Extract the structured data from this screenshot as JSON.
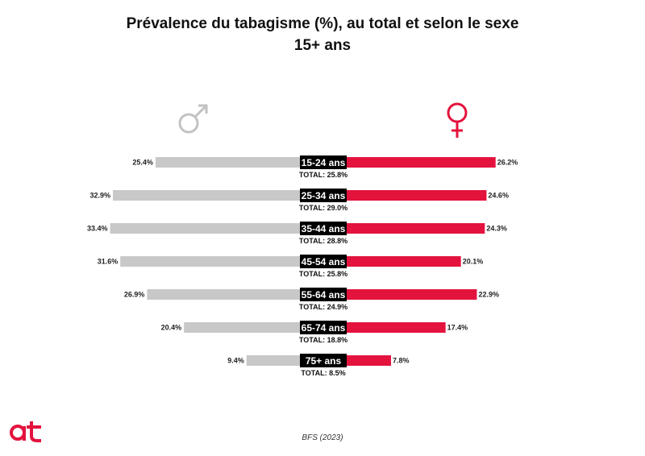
{
  "chart_data": {
    "type": "bar",
    "title": "Prévalence du tabagisme (%), au total et selon le sexe",
    "subtitle": "15+ ans",
    "categories": [
      "15-24 ans",
      "25-34 ans",
      "35-44 ans",
      "45-54 ans",
      "55-64 ans",
      "65-74 ans",
      "75+ ans"
    ],
    "series": [
      {
        "values": [
          25.4,
          32.9,
          33.4,
          31.6,
          26.9,
          20.4,
          9.4
        ],
        "color": "#c8c8c8"
      },
      {
        "values": [
          26.2,
          24.6,
          24.3,
          20.1,
          22.9,
          17.4,
          7.8
        ],
        "color": "#e3133d"
      }
    ],
    "value_labels": {
      "male": [
        "25.4%",
        "32.9%",
        "33.4%",
        "31.6%",
        "26.9%",
        "20.4%",
        "9.4%"
      ],
      "female": [
        "26.2%",
        "24.6%",
        "24.3%",
        "20.1%",
        "22.9%",
        "17.4%",
        "7.8%"
      ]
    },
    "totals": [
      "TOTAL: 25.8%",
      "TOTAL: 29.0%",
      "TOTAL: 28.8%",
      "TOTAL: 25.8%",
      "TOTAL: 24.9%",
      "TOTAL: 18.8%",
      "TOTAL: 8.5%"
    ],
    "male_icon": "male-symbol-icon",
    "female_icon": "female-symbol-icon",
    "source": "BFS (2023)",
    "logo_icon": "at-logo-icon",
    "colors": {
      "male": "#c8c8c8",
      "female": "#e3133d",
      "label_bg": "#000000",
      "logo": "#e3133d"
    }
  }
}
